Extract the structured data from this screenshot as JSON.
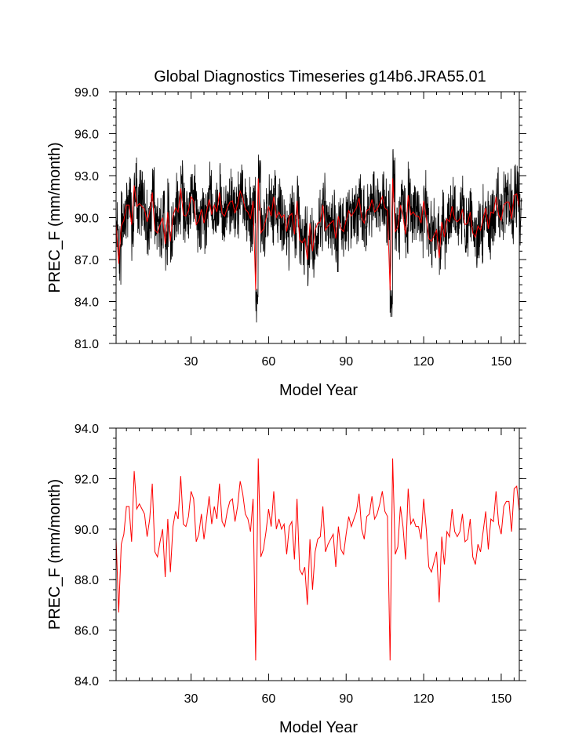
{
  "title": "Global Diagnostics Timeseries g14b6.JRA55.01",
  "colors": {
    "monthly": "#000000",
    "annual": "#ff0000",
    "axis": "#000000"
  },
  "chart_data": [
    {
      "type": "line",
      "title": "Global Diagnostics Timeseries g14b6.JRA55.01",
      "xlabel": "Model Year",
      "ylabel": "PREC_F (mm/month)",
      "xlim": [
        1,
        157
      ],
      "ylim": [
        81.0,
        99.0
      ],
      "x_ticks": [
        30,
        60,
        90,
        120,
        150
      ],
      "x_tick_labels": [
        "30",
        "60",
        "90",
        "120",
        "150"
      ],
      "y_ticks": [
        81.0,
        84.0,
        87.0,
        90.0,
        93.0,
        96.0,
        99.0
      ],
      "y_tick_labels": [
        "81.0",
        "84.0",
        "87.0",
        "90.0",
        "93.0",
        "96.0",
        "99.0"
      ],
      "grid": false,
      "series": [
        {
          "color": "#000000",
          "resolution": "monthly",
          "x_start": 1,
          "x_step": 0.0833333,
          "values": []
        },
        {
          "color": "#ff0000",
          "resolution": "annual",
          "x_start": 1,
          "x_step": 1,
          "values": []
        }
      ]
    },
    {
      "type": "line",
      "title": "",
      "xlabel": "Model Year",
      "ylabel": "PREC_F (mm/month)",
      "xlim": [
        1,
        157
      ],
      "ylim": [
        84.0,
        94.0
      ],
      "x_ticks": [
        30,
        60,
        90,
        120,
        150
      ],
      "x_tick_labels": [
        "30",
        "60",
        "90",
        "120",
        "150"
      ],
      "y_ticks": [
        84.0,
        86.0,
        88.0,
        90.0,
        92.0,
        94.0
      ],
      "y_tick_labels": [
        "84.0",
        "86.0",
        "88.0",
        "90.0",
        "92.0",
        "94.0"
      ],
      "grid": false,
      "series": [
        {
          "color": "#ff0000",
          "resolution": "annual",
          "x_start": 1,
          "x_step": 1,
          "values": []
        }
      ]
    }
  ]
}
